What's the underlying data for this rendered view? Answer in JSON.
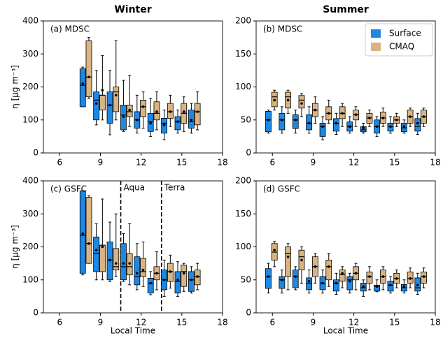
{
  "chart_data": [
    {
      "type": "box",
      "title": "Winter",
      "panel_label": "(a) MDSC",
      "ylabel": "η [μg m⁻³]",
      "xlim": [
        4.8,
        18
      ],
      "xticks": [
        6,
        9,
        12,
        15,
        18
      ],
      "ylim": [
        0,
        400
      ],
      "yticks": [
        0,
        100,
        200,
        300,
        400
      ],
      "series": [
        {
          "color": "#1e88e5",
          "x": [
            7.7,
            8.7,
            9.7,
            10.7,
            11.7,
            12.7,
            13.7,
            14.7,
            15.7
          ],
          "whislo": [
            140,
            85,
            55,
            65,
            60,
            50,
            40,
            60,
            60
          ],
          "q1": [
            140,
            100,
            90,
            70,
            75,
            65,
            60,
            70,
            75
          ],
          "med": [
            205,
            160,
            145,
            115,
            100,
            95,
            90,
            95,
            95
          ],
          "q3": [
            255,
            185,
            185,
            145,
            125,
            120,
            105,
            110,
            130
          ],
          "whishi": [
            260,
            250,
            250,
            220,
            175,
            165,
            130,
            130,
            150
          ],
          "mean": [
            210,
            150,
            145,
            110,
            100,
            90,
            85,
            95,
            100
          ]
        },
        {
          "color": "#d9b382",
          "x": [
            8.15,
            9.15,
            10.15,
            11.15,
            12.15,
            13.15,
            14.15,
            15.15,
            16.15
          ],
          "whislo": [
            165,
            100,
            100,
            80,
            75,
            70,
            80,
            65,
            70
          ],
          "q1": [
            170,
            130,
            125,
            110,
            110,
            100,
            105,
            90,
            85
          ],
          "med": [
            230,
            175,
            185,
            125,
            140,
            120,
            125,
            120,
            125
          ],
          "q3": [
            340,
            175,
            200,
            145,
            160,
            155,
            150,
            150,
            150
          ],
          "whishi": [
            350,
            295,
            340,
            235,
            185,
            185,
            175,
            170,
            185
          ],
          "mean": [
            230,
            190,
            175,
            130,
            140,
            125,
            125,
            125,
            125
          ]
        }
      ]
    },
    {
      "type": "box",
      "title": "Summer",
      "panel_label": "(b) MDSC",
      "legend": "upper right",
      "xlim": [
        4.8,
        18
      ],
      "xticks": [
        6,
        9,
        12,
        15,
        18
      ],
      "ylim": [
        0,
        200
      ],
      "yticks": [
        0,
        50,
        100,
        150,
        200
      ],
      "series": [
        {
          "name": "Surface",
          "color": "#1e88e5",
          "x": [
            5.7,
            6.7,
            7.7,
            8.7,
            9.7,
            10.7,
            11.7,
            12.7,
            13.7,
            14.7,
            15.7,
            16.7
          ],
          "whislo": [
            30,
            30,
            30,
            30,
            20,
            28,
            30,
            30,
            25,
            30,
            30,
            28
          ],
          "q1": [
            32,
            35,
            37,
            35,
            25,
            33,
            33,
            32,
            30,
            33,
            32,
            33
          ],
          "med": [
            50,
            50,
            50,
            45,
            40,
            45,
            40,
            35,
            40,
            40,
            38,
            40
          ],
          "q3": [
            63,
            60,
            58,
            58,
            45,
            52,
            47,
            40,
            50,
            45,
            45,
            52
          ],
          "whishi": [
            65,
            70,
            65,
            70,
            55,
            60,
            55,
            45,
            55,
            55,
            50,
            60
          ],
          "mean": [
            50,
            50,
            50,
            45,
            40,
            45,
            40,
            38,
            40,
            40,
            40,
            45
          ]
        },
        {
          "name": "CMAQ",
          "color": "#d9b382",
          "x": [
            6.15,
            7.15,
            8.15,
            9.15,
            10.15,
            11.15,
            12.15,
            13.15,
            14.15,
            15.15,
            16.15,
            17.15
          ],
          "whislo": [
            65,
            60,
            55,
            45,
            45,
            40,
            40,
            40,
            40,
            40,
            40,
            40
          ],
          "q1": [
            70,
            68,
            68,
            55,
            50,
            52,
            50,
            45,
            45,
            45,
            45,
            45
          ],
          "med": [
            85,
            85,
            80,
            65,
            60,
            60,
            58,
            53,
            53,
            50,
            55,
            55
          ],
          "q3": [
            92,
            92,
            87,
            75,
            70,
            70,
            65,
            60,
            62,
            55,
            65,
            65
          ],
          "whishi": [
            95,
            95,
            90,
            85,
            80,
            75,
            70,
            65,
            68,
            60,
            68,
            68
          ],
          "mean": [
            80,
            80,
            75,
            65,
            60,
            60,
            58,
            53,
            53,
            50,
            55,
            55
          ]
        }
      ]
    },
    {
      "type": "box",
      "panel_label": "(c) GSFC",
      "ylabel": "η [μg m⁻³]",
      "xlabel": "Local Time",
      "xlim": [
        4.8,
        18
      ],
      "xticks": [
        6,
        9,
        12,
        15,
        18
      ],
      "ylim": [
        0,
        400
      ],
      "yticks": [
        0,
        100,
        200,
        300,
        400
      ],
      "annotations": [
        {
          "x": 10.5,
          "text": "Aqua"
        },
        {
          "x": 13.5,
          "text": "Terra"
        }
      ],
      "series": [
        {
          "color": "#1e88e5",
          "x": [
            7.7,
            8.7,
            9.7,
            10.7,
            11.7,
            12.7,
            13.7,
            14.7,
            15.7
          ],
          "whislo": [
            115,
            100,
            95,
            95,
            70,
            55,
            50,
            50,
            60
          ],
          "q1": [
            120,
            125,
            100,
            100,
            85,
            60,
            70,
            60,
            65
          ],
          "med": [
            235,
            180,
            160,
            140,
            110,
            90,
            100,
            95,
            100
          ],
          "q3": [
            370,
            230,
            215,
            210,
            170,
            105,
            130,
            125,
            125
          ],
          "whishi": [
            370,
            270,
            275,
            240,
            210,
            125,
            160,
            155,
            140
          ],
          "mean": [
            240,
            190,
            160,
            150,
            120,
            90,
            100,
            100,
            100
          ]
        },
        {
          "color": "#d9b382",
          "x": [
            8.15,
            9.15,
            10.15,
            11.15,
            12.15,
            13.15,
            14.15,
            15.15,
            16.15
          ],
          "whislo": [
            150,
            100,
            110,
            85,
            80,
            70,
            75,
            65,
            70
          ],
          "q1": [
            150,
            125,
            130,
            115,
            110,
            100,
            95,
            80,
            85
          ],
          "med": [
            210,
            205,
            140,
            140,
            125,
            120,
            125,
            125,
            110
          ],
          "q3": [
            350,
            205,
            195,
            180,
            165,
            140,
            150,
            145,
            130
          ],
          "whishi": [
            355,
            345,
            300,
            270,
            215,
            185,
            175,
            150,
            150
          ],
          "mean": [
            210,
            200,
            150,
            150,
            130,
            120,
            125,
            120,
            110
          ]
        }
      ]
    },
    {
      "type": "box",
      "panel_label": "(d) GSFC",
      "xlabel": "Local Time",
      "xlim": [
        4.8,
        18
      ],
      "xticks": [
        6,
        9,
        12,
        15,
        18
      ],
      "ylim": [
        0,
        200
      ],
      "yticks": [
        0,
        50,
        100,
        150,
        200
      ],
      "series": [
        {
          "color": "#1e88e5",
          "x": [
            5.7,
            6.7,
            7.7,
            8.7,
            9.7,
            10.7,
            11.7,
            12.7,
            13.7,
            14.7,
            15.7,
            16.7
          ],
          "whislo": [
            30,
            30,
            35,
            30,
            30,
            28,
            30,
            25,
            32,
            30,
            30,
            28
          ],
          "q1": [
            37,
            37,
            38,
            35,
            35,
            33,
            35,
            33,
            33,
            33,
            33,
            33
          ],
          "med": [
            55,
            50,
            55,
            45,
            45,
            45,
            50,
            38,
            40,
            42,
            38,
            38
          ],
          "q3": [
            67,
            55,
            65,
            53,
            55,
            50,
            55,
            45,
            42,
            48,
            43,
            53
          ],
          "whishi": [
            75,
            65,
            70,
            65,
            65,
            60,
            60,
            50,
            50,
            55,
            50,
            60
          ],
          "mean": [
            55,
            50,
            55,
            48,
            45,
            45,
            48,
            40,
            40,
            42,
            40,
            42
          ]
        },
        {
          "color": "#d9b382",
          "x": [
            6.15,
            7.15,
            8.15,
            9.15,
            10.15,
            11.15,
            12.15,
            13.15,
            14.15,
            15.15,
            16.15,
            17.15
          ],
          "whislo": [
            70,
            35,
            45,
            45,
            40,
            38,
            35,
            35,
            35,
            38,
            38,
            38
          ],
          "q1": [
            80,
            55,
            65,
            55,
            50,
            48,
            50,
            45,
            45,
            45,
            45,
            45
          ],
          "med": [
            92,
            90,
            85,
            70,
            70,
            58,
            60,
            55,
            55,
            52,
            52,
            55
          ],
          "q3": [
            105,
            100,
            95,
            85,
            80,
            65,
            70,
            62,
            65,
            60,
            62,
            62
          ],
          "whishi": [
            108,
            105,
            100,
            90,
            90,
            70,
            75,
            70,
            70,
            65,
            68,
            68
          ],
          "mean": [
            95,
            85,
            80,
            70,
            70,
            60,
            60,
            55,
            55,
            52,
            52,
            55
          ]
        }
      ]
    }
  ]
}
